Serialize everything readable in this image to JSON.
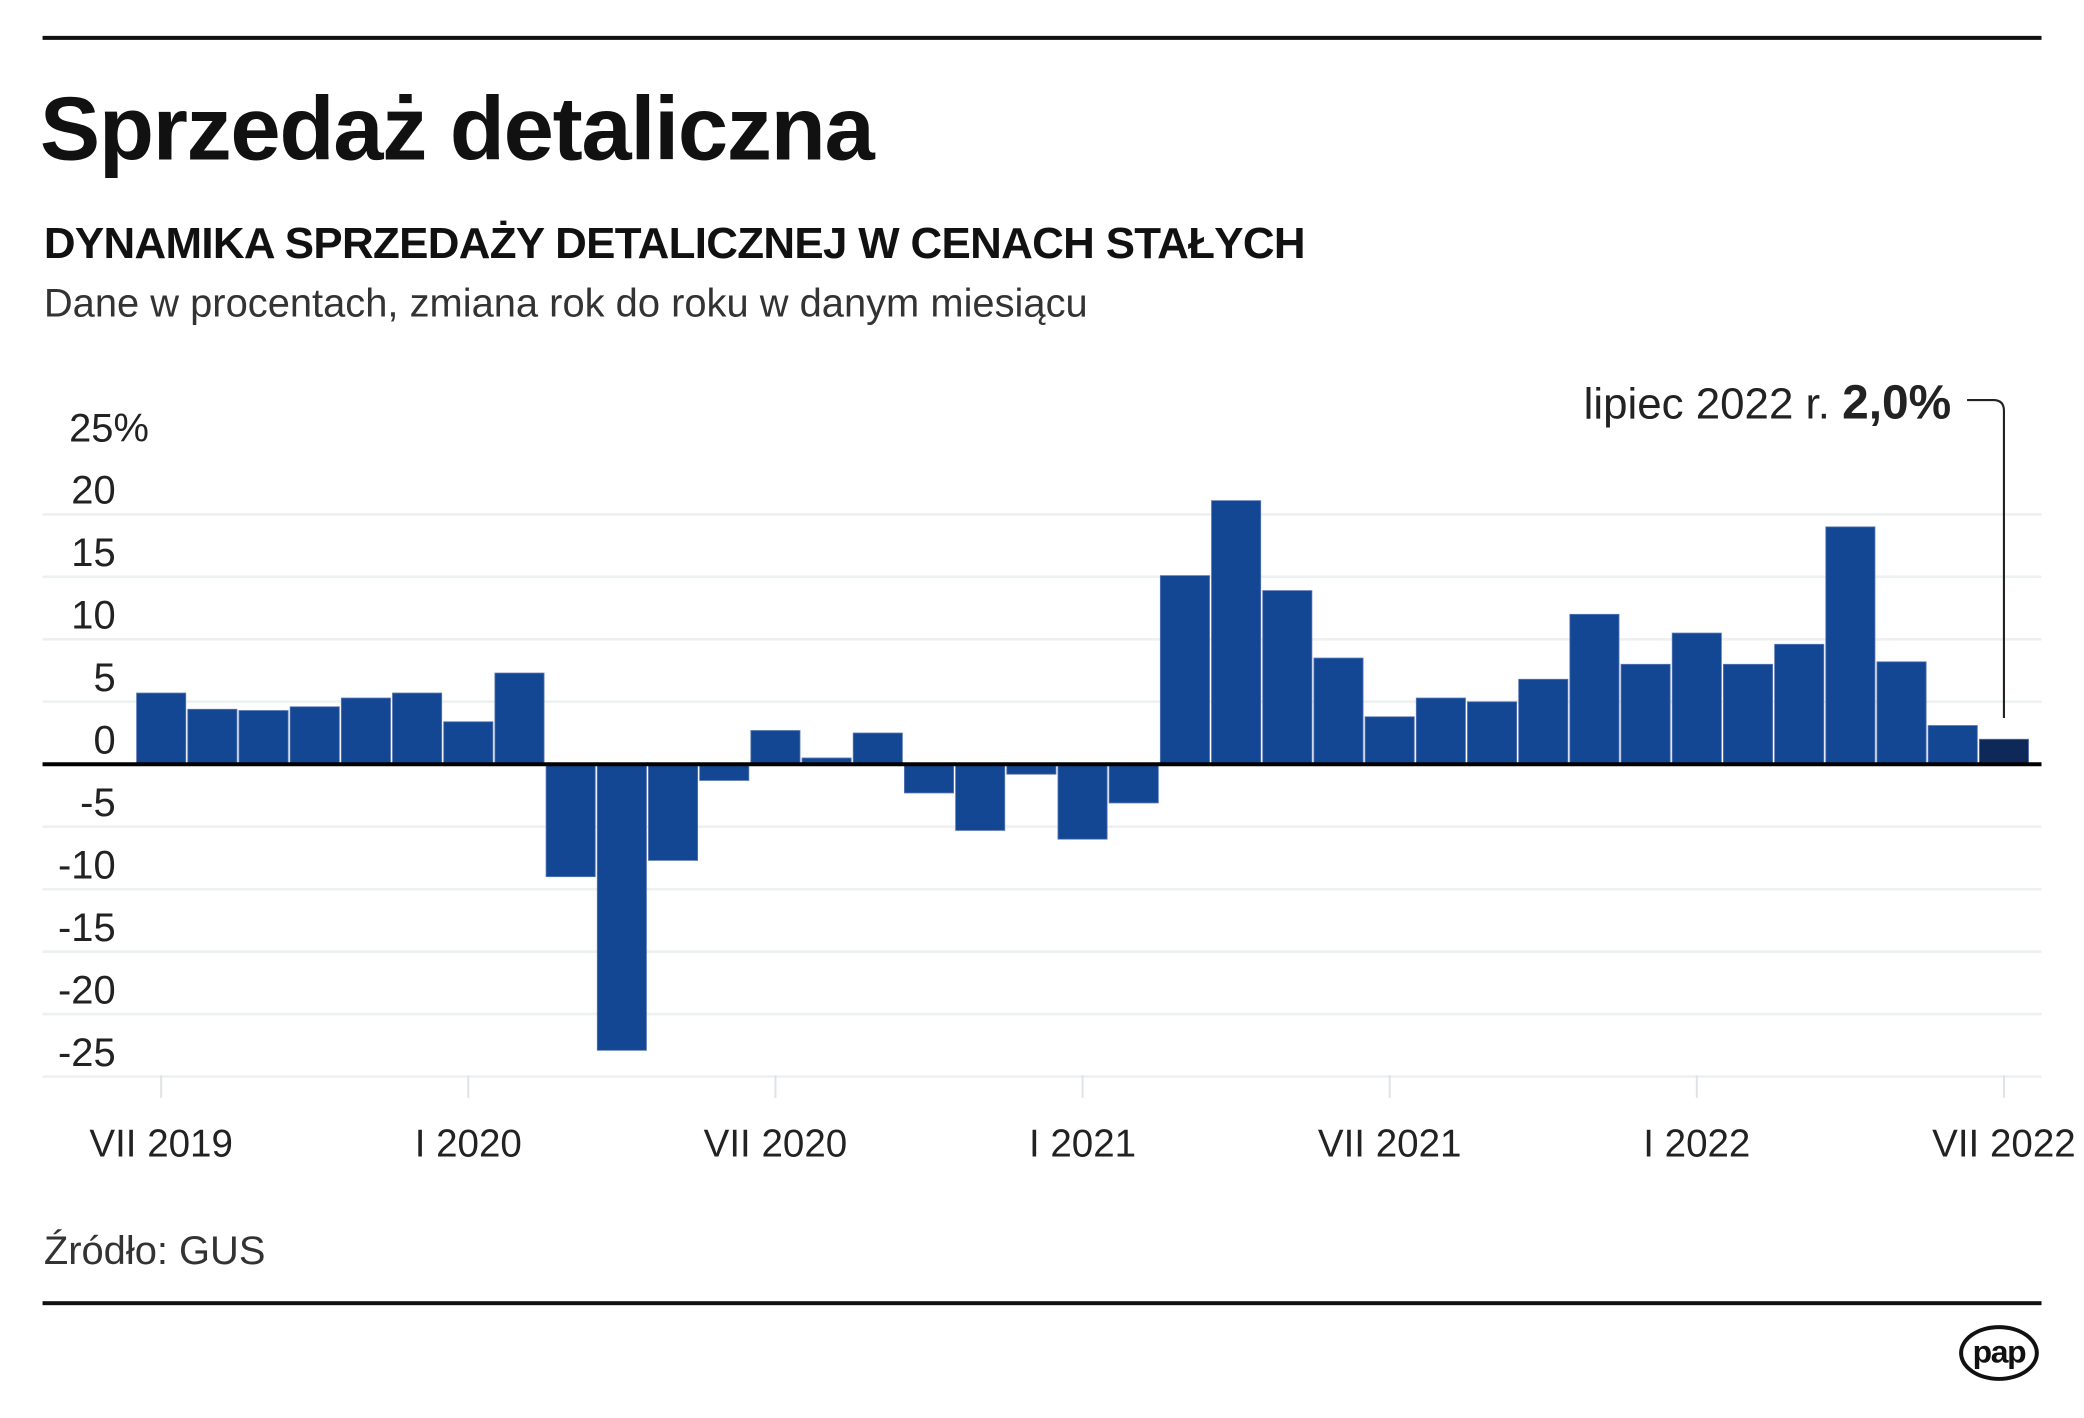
{
  "header": {
    "title": "Sprzedaż detaliczna",
    "subtitle": "DYNAMIKA SPRZEDAŻY DETALICZNEJ W CENACH STAŁYCH",
    "description": "Dane w procentach, zmiana rok do roku w danym miesiącu"
  },
  "footer": {
    "source": "Źródło: GUS",
    "logo": "pap"
  },
  "colors": {
    "bar": "#134794",
    "highlight_bar": "#0e2857",
    "grid": "#eef1f1",
    "axis": "#000000"
  },
  "chart_data": {
    "type": "bar",
    "title": "DYNAMIKA SPRZEDAŻY DETALICZNEJ W CENACH STAŁYCH",
    "subtitle": "Dane w procentach, zmiana rok do roku w danym miesiącu",
    "xlabel": "",
    "ylabel": "",
    "ylim": [
      -25,
      25
    ],
    "grid": true,
    "y_ticks": [
      25,
      20,
      15,
      10,
      5,
      0,
      -5,
      -10,
      -15,
      -20,
      -25
    ],
    "y_tick_labels": [
      "25%",
      "20",
      "15",
      "10",
      "5",
      "0",
      "-5",
      "-10",
      "-15",
      "-20",
      "-25"
    ],
    "categories": [
      "VII 2019",
      "VIII 2019",
      "IX 2019",
      "X 2019",
      "XI 2019",
      "XII 2019",
      "I 2020",
      "II 2020",
      "III 2020",
      "IV 2020",
      "V 2020",
      "VI 2020",
      "VII 2020",
      "VIII 2020",
      "IX 2020",
      "X 2020",
      "XI 2020",
      "XII 2020",
      "I 2021",
      "II 2021",
      "III 2021",
      "IV 2021",
      "V 2021",
      "VI 2021",
      "VII 2021",
      "VIII 2021",
      "IX 2021",
      "X 2021",
      "XI 2021",
      "XII 2021",
      "I 2022",
      "II 2022",
      "III 2022",
      "IV 2022",
      "V 2022",
      "VI 2022",
      "VII 2022"
    ],
    "values": [
      5.7,
      4.4,
      4.3,
      4.6,
      5.3,
      5.7,
      3.4,
      7.3,
      -9.0,
      -22.9,
      -7.7,
      -1.3,
      2.7,
      0.5,
      2.5,
      -2.3,
      -5.3,
      -0.8,
      -6.0,
      -3.1,
      15.1,
      21.1,
      13.9,
      8.5,
      3.8,
      5.3,
      5.0,
      6.8,
      12.0,
      8.0,
      10.5,
      8.0,
      9.6,
      19.0,
      8.2,
      3.1,
      2.0
    ],
    "highlight_index": 36,
    "x_tick_labels": [
      {
        "index": 0,
        "label": "VII 2019"
      },
      {
        "index": 6,
        "label": "I 2020"
      },
      {
        "index": 12,
        "label": "VII 2020"
      },
      {
        "index": 18,
        "label": "I 2021"
      },
      {
        "index": 24,
        "label": "VII 2021"
      },
      {
        "index": 30,
        "label": "I 2022"
      },
      {
        "index": 36,
        "label": "VII 2022"
      }
    ],
    "annotation": {
      "label": "lipiec 2022 r.",
      "value": "2,0%",
      "index": 36
    }
  }
}
